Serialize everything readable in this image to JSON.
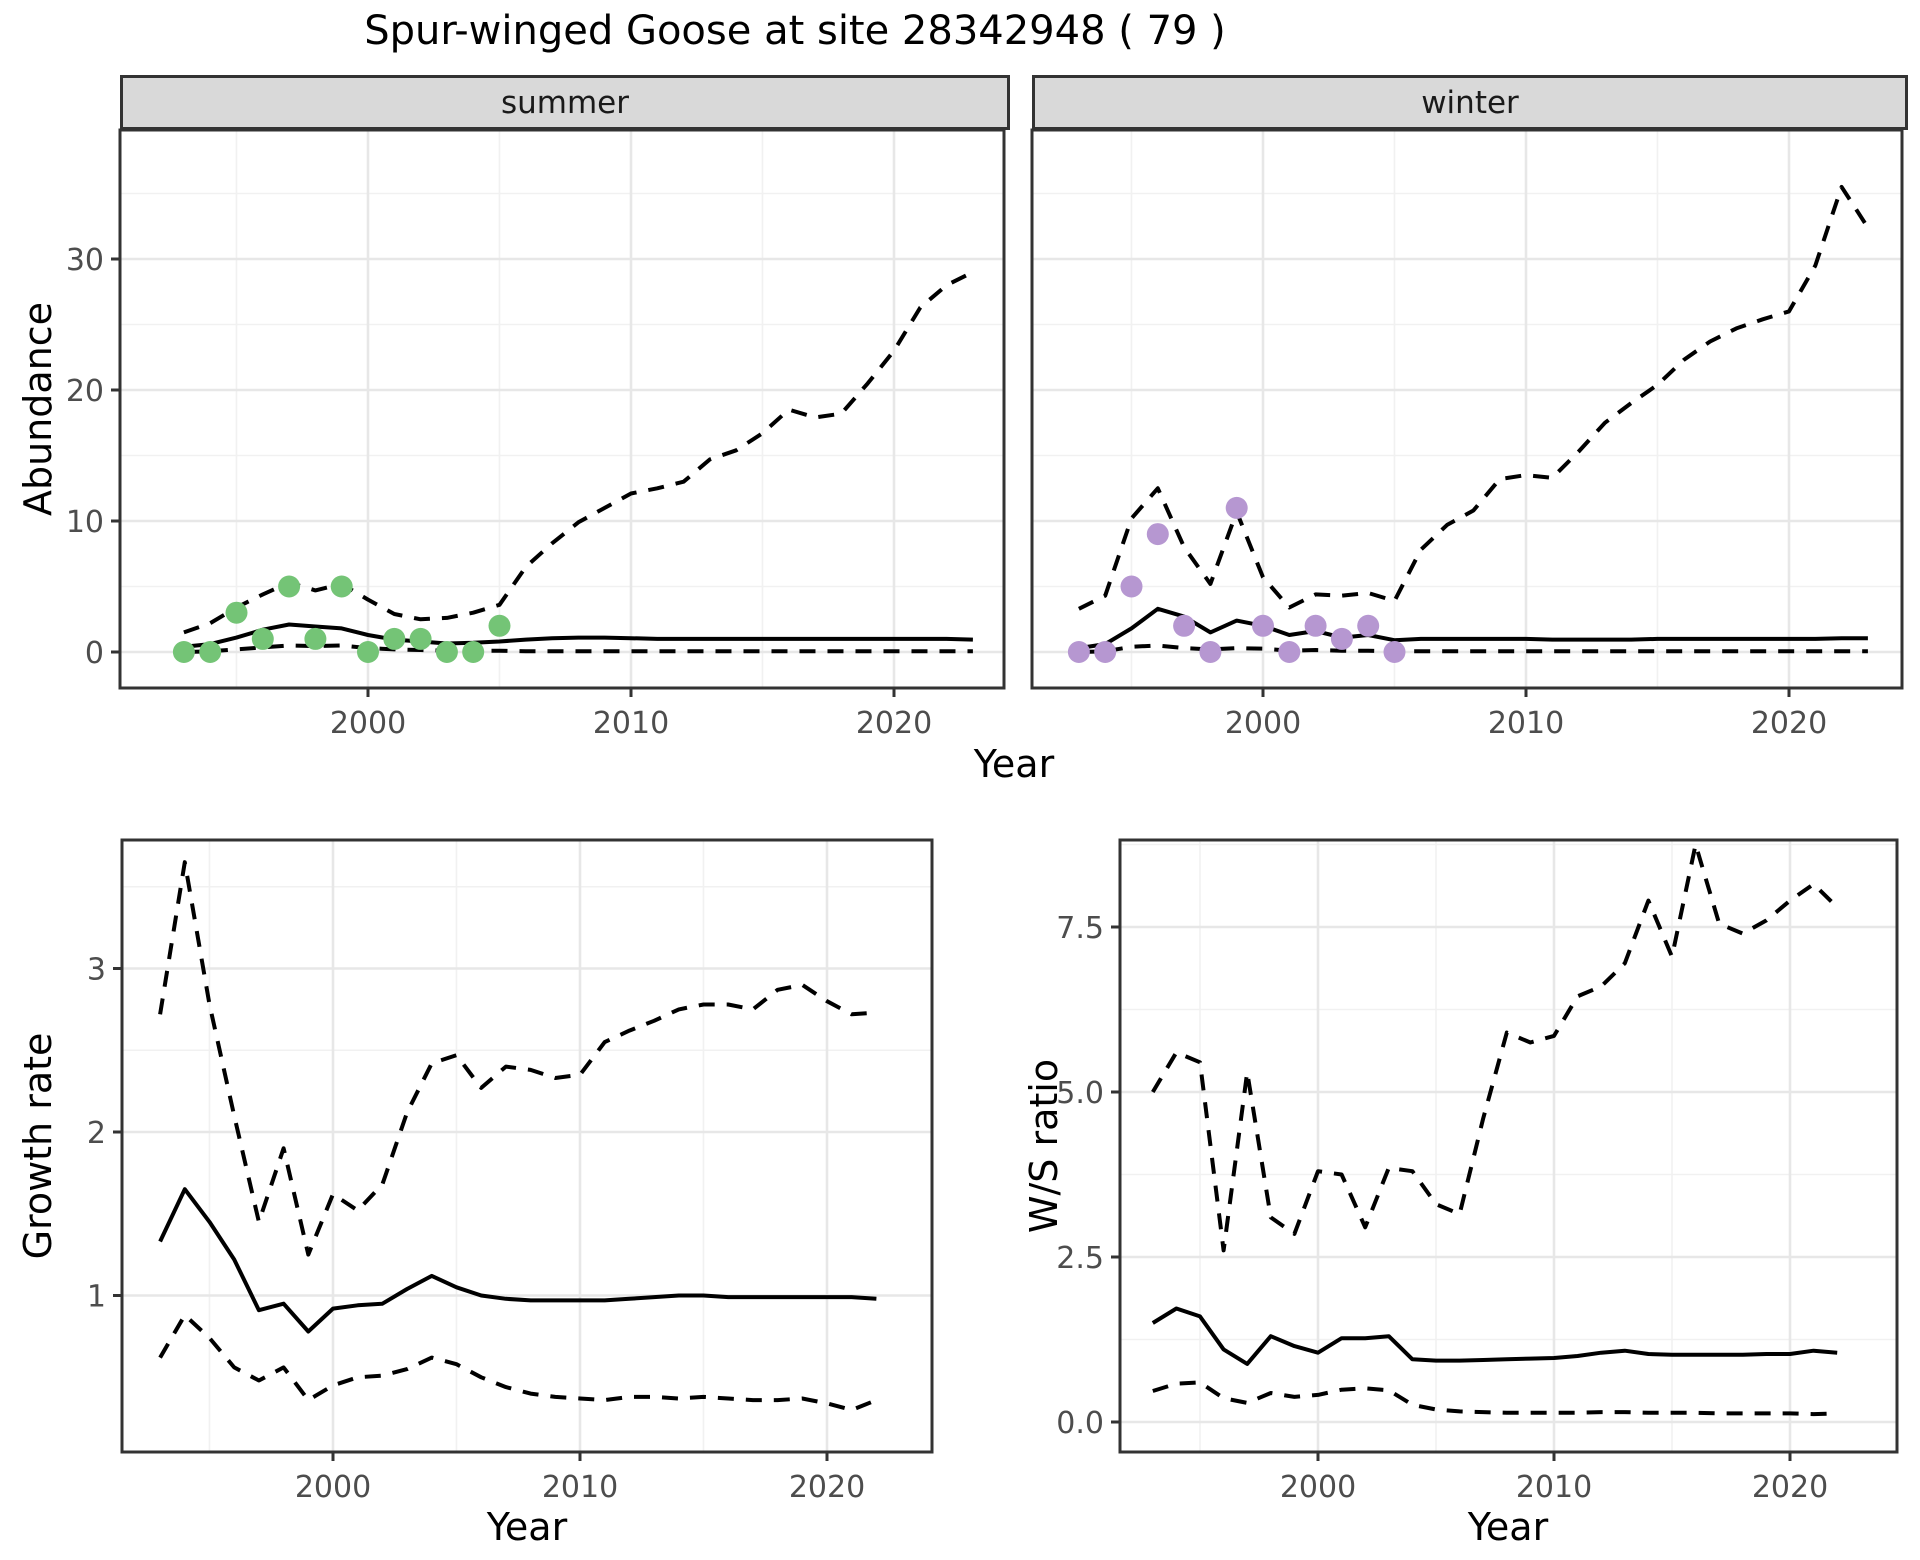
{
  "title": "Spur-winged Goose at site 28342948 ( 79 )",
  "facets": {
    "summer": "summer",
    "winter": "winter"
  },
  "axes": {
    "abundance_label": "Abundance",
    "growth_label": "Growth rate",
    "ws_label": "W/S ratio",
    "year_label": "Year"
  },
  "colors": {
    "summer_points": "#74c476",
    "winter_points": "#b697d1",
    "line": "#000000",
    "strip_bg": "#d9d9d9",
    "grid_major": "#e7e7e7",
    "grid_minor": "#f1f1f1",
    "panel_border": "#333333",
    "tick_label": "#4d4d4d"
  },
  "chart_data": [
    {
      "id": "abundance_summer",
      "type": "line",
      "facet": "summer",
      "ylabel": "Abundance",
      "xlabel": "Year",
      "xlim": [
        1990.6,
        2024.4
      ],
      "ylim": [
        -2.75,
        39.8
      ],
      "x_ticks": [
        2000,
        2010,
        2020
      ],
      "x_tick_labels": [
        "2000",
        "2010",
        "2020"
      ],
      "y_ticks": [
        0,
        10,
        20,
        30
      ],
      "y_tick_labels": [
        "0",
        "10",
        "20",
        "30"
      ],
      "years": [
        1993,
        1994,
        1995,
        1996,
        1997,
        1998,
        1999,
        2000,
        2001,
        2002,
        2003,
        2004,
        2005,
        2006,
        2007,
        2008,
        2009,
        2010,
        2011,
        2012,
        2013,
        2014,
        2015,
        2016,
        2017,
        2018,
        2019,
        2020,
        2021,
        2022,
        2023
      ],
      "series": [
        {
          "name": "fit",
          "style": "solid",
          "values": [
            0.4,
            0.6,
            1.1,
            1.7,
            2.1,
            1.95,
            1.8,
            1.3,
            0.95,
            0.8,
            0.65,
            0.7,
            0.8,
            0.95,
            1.05,
            1.1,
            1.1,
            1.05,
            1.0,
            1.0,
            1.0,
            1.0,
            1.0,
            1.0,
            1.0,
            1.0,
            1.0,
            1.0,
            1.0,
            1.0,
            0.95
          ]
        },
        {
          "name": "upper_ci",
          "style": "dashed",
          "values": [
            1.5,
            2.2,
            3.4,
            4.4,
            5.3,
            4.7,
            5.2,
            4.0,
            2.9,
            2.5,
            2.6,
            3.0,
            3.6,
            6.5,
            8.3,
            9.9,
            11.0,
            12.1,
            12.5,
            13.0,
            14.7,
            15.4,
            16.7,
            18.5,
            17.9,
            18.2,
            20.5,
            23.0,
            26.3,
            28.0,
            29.0
          ]
        },
        {
          "name": "lower_ci",
          "style": "dashed",
          "values": [
            0.0,
            0.05,
            0.2,
            0.35,
            0.5,
            0.45,
            0.5,
            0.3,
            0.2,
            0.15,
            0.1,
            0.1,
            0.1,
            0.05,
            0.05,
            0.05,
            0.05,
            0.05,
            0.05,
            0.05,
            0.05,
            0.05,
            0.05,
            0.05,
            0.05,
            0.05,
            0.05,
            0.05,
            0.05,
            0.05,
            0.05
          ]
        }
      ],
      "observed": {
        "years": [
          1993,
          1994,
          1995,
          1996,
          1997,
          1998,
          1999,
          2000,
          2001,
          2002,
          2003,
          2004,
          2005
        ],
        "values": [
          0,
          0,
          3,
          1,
          5,
          1,
          5,
          0,
          1,
          1,
          0,
          0,
          2
        ],
        "color": "#74c476"
      }
    },
    {
      "id": "abundance_winter",
      "type": "line",
      "facet": "winter",
      "ylabel": "Abundance",
      "xlabel": "Year",
      "xlim": [
        1991.5,
        2024.8
      ],
      "ylim": [
        -2.75,
        39.8
      ],
      "x_ticks": [
        2000,
        2010,
        2020
      ],
      "x_tick_labels": [
        "2000",
        "2010",
        "2020"
      ],
      "y_ticks": [
        0,
        10,
        20,
        30
      ],
      "y_tick_labels": [
        "0",
        "10",
        "20",
        "30"
      ],
      "years": [
        1993,
        1994,
        1995,
        1996,
        1997,
        1998,
        1999,
        2000,
        2001,
        2002,
        2003,
        2004,
        2005,
        2006,
        2007,
        2008,
        2009,
        2010,
        2011,
        2012,
        2013,
        2014,
        2015,
        2016,
        2017,
        2018,
        2019,
        2020,
        2021,
        2022,
        2023
      ],
      "series": [
        {
          "name": "fit",
          "style": "solid",
          "values": [
            0.3,
            0.6,
            1.8,
            3.3,
            2.7,
            1.5,
            2.4,
            2.0,
            1.3,
            1.6,
            1.1,
            1.3,
            0.9,
            1.0,
            1.0,
            1.0,
            1.0,
            1.0,
            0.95,
            0.95,
            0.95,
            0.95,
            1.0,
            1.0,
            1.0,
            1.0,
            1.0,
            1.0,
            1.0,
            1.05,
            1.05
          ]
        },
        {
          "name": "upper_ci",
          "style": "dashed",
          "values": [
            3.3,
            4.3,
            10.2,
            12.5,
            8.0,
            5.2,
            10.7,
            5.7,
            3.4,
            4.4,
            4.3,
            4.5,
            3.9,
            7.8,
            9.7,
            10.8,
            13.2,
            13.5,
            13.3,
            15.3,
            17.5,
            19.0,
            20.4,
            22.3,
            23.7,
            24.7,
            25.4,
            26.0,
            29.5,
            35.5,
            32.4
          ]
        },
        {
          "name": "lower_ci",
          "style": "dashed",
          "values": [
            0.0,
            0.05,
            0.4,
            0.5,
            0.3,
            0.2,
            0.3,
            0.25,
            0.1,
            0.15,
            0.1,
            0.1,
            0.05,
            0.05,
            0.05,
            0.05,
            0.05,
            0.05,
            0.05,
            0.05,
            0.05,
            0.05,
            0.05,
            0.05,
            0.05,
            0.05,
            0.05,
            0.05,
            0.05,
            0.05,
            0.05
          ]
        }
      ],
      "observed": {
        "years": [
          1993,
          1994,
          1995,
          1996,
          1997,
          1998,
          1999,
          2000,
          2001,
          2002,
          2003,
          2004,
          2005
        ],
        "values": [
          0,
          0,
          5,
          9,
          2,
          0,
          11,
          2,
          0,
          2,
          1,
          2,
          0
        ],
        "color": "#b697d1"
      }
    },
    {
      "id": "growth_rate",
      "type": "line",
      "facet": null,
      "ylabel": "Growth rate",
      "xlabel": "Year",
      "xlim": [
        1991.5,
        2024.3
      ],
      "ylim": [
        0.05,
        3.78
      ],
      "x_ticks": [
        2000,
        2010,
        2020
      ],
      "x_tick_labels": [
        "2000",
        "2010",
        "2020"
      ],
      "y_ticks": [
        1,
        2,
        3
      ],
      "y_tick_labels": [
        "1",
        "2",
        "3"
      ],
      "years": [
        1993,
        1994,
        1995,
        1996,
        1997,
        1998,
        1999,
        2000,
        2001,
        2002,
        2003,
        2004,
        2005,
        2006,
        2007,
        2008,
        2009,
        2010,
        2011,
        2012,
        2013,
        2014,
        2015,
        2016,
        2017,
        2018,
        2019,
        2020,
        2021,
        2022
      ],
      "series": [
        {
          "name": "fit",
          "style": "solid",
          "values": [
            1.33,
            1.65,
            1.45,
            1.22,
            0.91,
            0.95,
            0.78,
            0.92,
            0.94,
            0.95,
            1.04,
            1.12,
            1.05,
            1.0,
            0.98,
            0.97,
            0.97,
            0.97,
            0.97,
            0.98,
            0.99,
            1.0,
            1.0,
            0.99,
            0.99,
            0.99,
            0.99,
            0.99,
            0.99,
            0.98
          ]
        },
        {
          "name": "upper_ci",
          "style": "dashed",
          "values": [
            2.72,
            3.65,
            2.78,
            2.1,
            1.45,
            1.9,
            1.25,
            1.62,
            1.52,
            1.68,
            2.12,
            2.42,
            2.47,
            2.27,
            2.4,
            2.38,
            2.33,
            2.35,
            2.55,
            2.62,
            2.68,
            2.75,
            2.78,
            2.78,
            2.75,
            2.87,
            2.9,
            2.8,
            2.72,
            2.73
          ]
        },
        {
          "name": "lower_ci",
          "style": "dashed",
          "values": [
            0.62,
            0.88,
            0.74,
            0.56,
            0.48,
            0.56,
            0.36,
            0.45,
            0.5,
            0.51,
            0.55,
            0.62,
            0.58,
            0.5,
            0.44,
            0.4,
            0.38,
            0.37,
            0.36,
            0.38,
            0.38,
            0.37,
            0.38,
            0.37,
            0.36,
            0.36,
            0.37,
            0.34,
            0.3,
            0.36
          ]
        }
      ],
      "observed": null
    },
    {
      "id": "ws_ratio",
      "type": "line",
      "facet": null,
      "ylabel": "W/S ratio",
      "xlabel": "Year",
      "xlim": [
        1991.6,
        2024.5
      ],
      "ylim": [
        -0.45,
        8.82
      ],
      "x_ticks": [
        2000,
        2010,
        2020
      ],
      "x_tick_labels": [
        "2000",
        "2010",
        "2020"
      ],
      "y_ticks": [
        0,
        2.5,
        5,
        7.5
      ],
      "y_tick_labels": [
        "0.0",
        "2.5",
        "5.0",
        "7.5"
      ],
      "years": [
        1993,
        1994,
        1995,
        1996,
        1997,
        1998,
        1999,
        2000,
        2001,
        2002,
        2003,
        2004,
        2005,
        2006,
        2007,
        2008,
        2009,
        2010,
        2011,
        2012,
        2013,
        2014,
        2015,
        2016,
        2017,
        2018,
        2019,
        2020,
        2021,
        2022
      ],
      "series": [
        {
          "name": "fit",
          "style": "solid",
          "values": [
            1.5,
            1.72,
            1.6,
            1.1,
            0.88,
            1.3,
            1.15,
            1.05,
            1.27,
            1.27,
            1.3,
            0.95,
            0.93,
            0.93,
            0.94,
            0.95,
            0.96,
            0.97,
            1.0,
            1.05,
            1.08,
            1.03,
            1.02,
            1.02,
            1.02,
            1.02,
            1.03,
            1.03,
            1.08,
            1.05
          ]
        },
        {
          "name": "upper_ci",
          "style": "dashed",
          "values": [
            5.0,
            5.6,
            5.45,
            2.6,
            5.3,
            3.1,
            2.85,
            3.8,
            3.75,
            2.95,
            3.85,
            3.8,
            3.3,
            3.15,
            4.6,
            5.9,
            5.75,
            5.85,
            6.45,
            6.6,
            6.95,
            7.9,
            7.05,
            8.75,
            7.55,
            7.4,
            7.6,
            7.9,
            8.15,
            7.8
          ]
        },
        {
          "name": "lower_ci",
          "style": "dashed",
          "values": [
            0.47,
            0.58,
            0.6,
            0.36,
            0.29,
            0.44,
            0.38,
            0.41,
            0.49,
            0.51,
            0.48,
            0.26,
            0.19,
            0.16,
            0.15,
            0.14,
            0.14,
            0.14,
            0.14,
            0.15,
            0.15,
            0.14,
            0.14,
            0.14,
            0.13,
            0.13,
            0.13,
            0.13,
            0.12,
            0.13
          ]
        }
      ],
      "observed": null
    }
  ]
}
